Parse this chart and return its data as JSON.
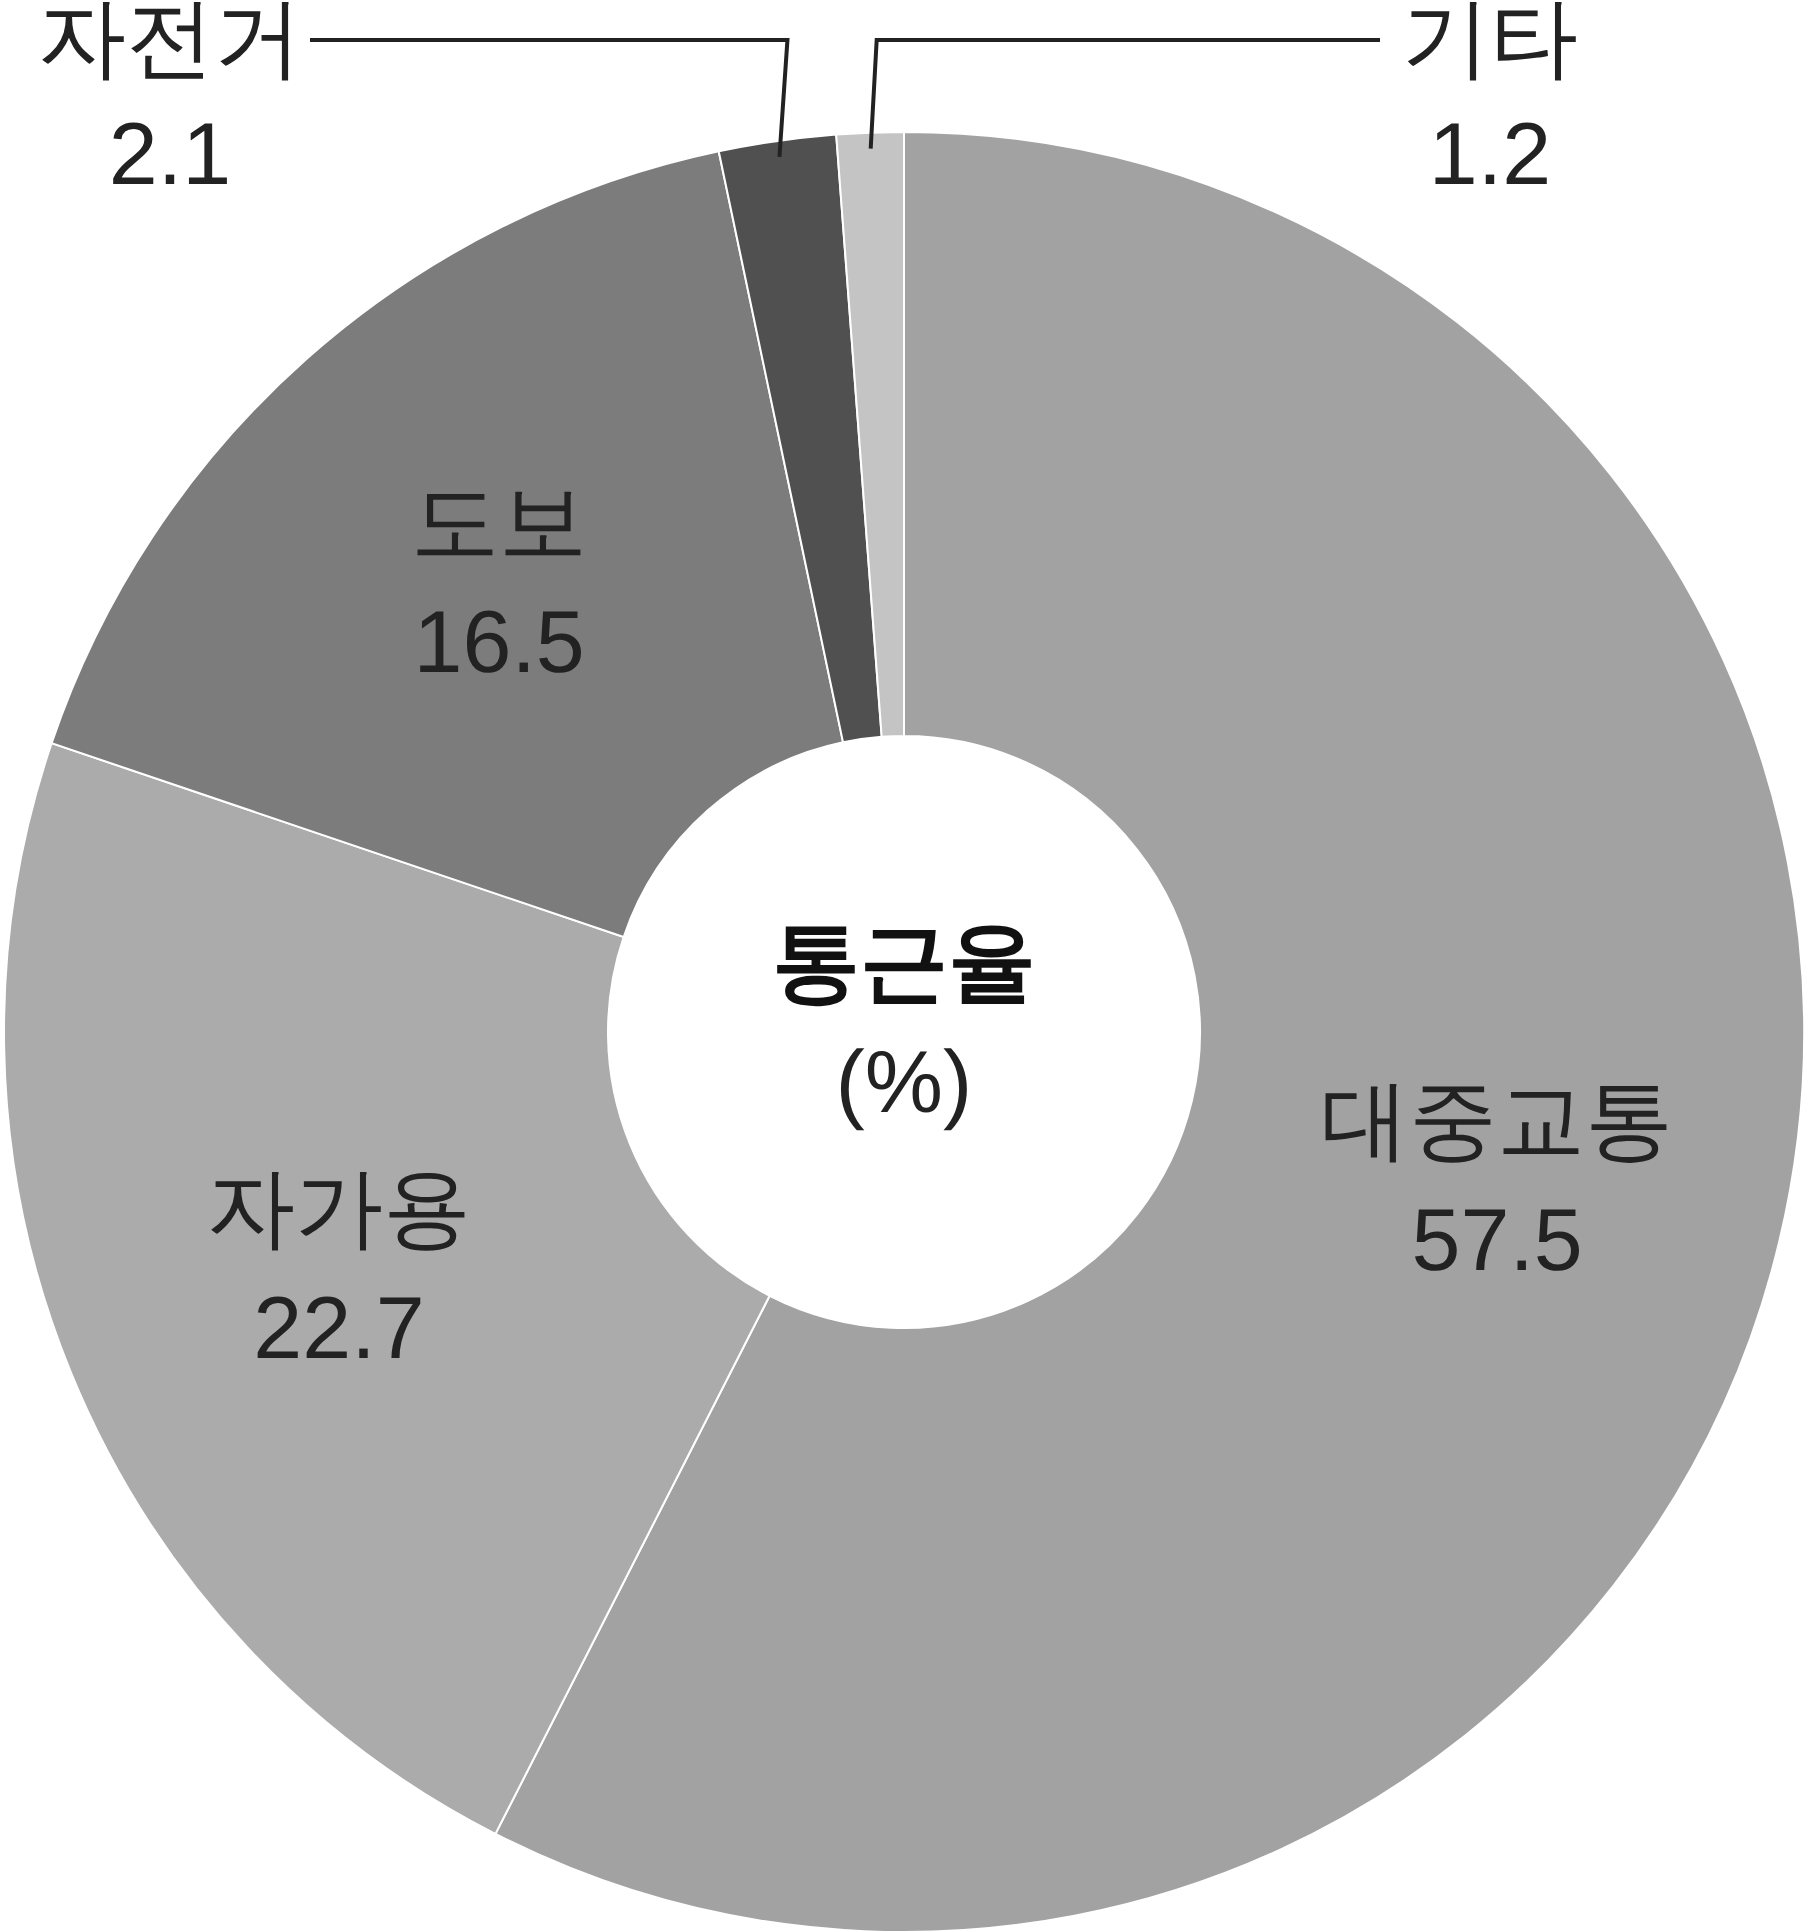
{
  "chart_data": {
    "type": "donut",
    "title": "통근율",
    "subtitle": "(%)",
    "categories": [
      "대중교통",
      "자가용",
      "도보",
      "자전거",
      "기타"
    ],
    "values": [
      57.5,
      22.7,
      16.5,
      2.1,
      1.2
    ],
    "colors": [
      "#a2a2a2",
      "#ababab",
      "#7c7c7c",
      "#505050",
      "#c4c4c4"
    ],
    "data_labels": true
  }
}
